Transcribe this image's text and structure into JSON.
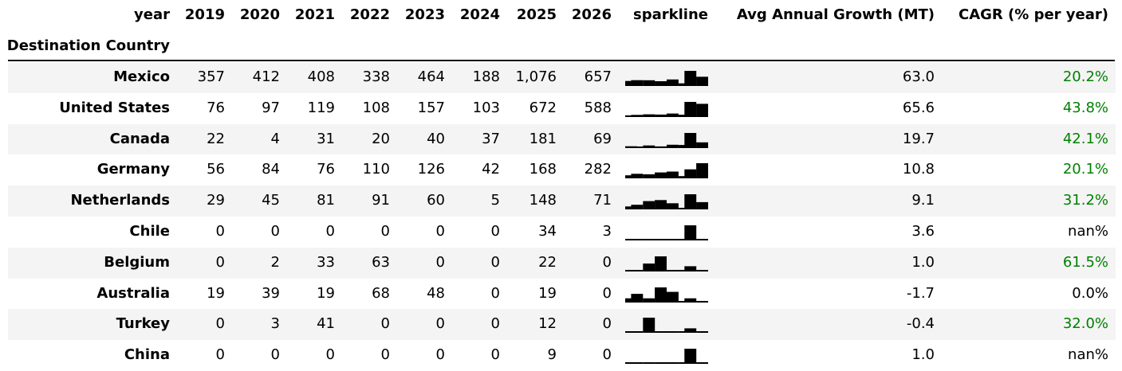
{
  "header": {
    "index_label": "year",
    "years": [
      "2019",
      "2020",
      "2021",
      "2022",
      "2023",
      "2024",
      "2025",
      "2026"
    ],
    "sparkline_label": "sparkline",
    "growth_label": "Avg Annual Growth (MT)",
    "cagr_label": "CAGR (% per year)",
    "row_index_label": "Destination Country"
  },
  "colors": {
    "positive_cagr": "#008000",
    "row_shade": "#f4f4f4",
    "spark": "#000000"
  },
  "chart_data": {
    "type": "table",
    "columns": [
      "2019",
      "2020",
      "2021",
      "2022",
      "2023",
      "2024",
      "2025",
      "2026",
      "sparkline",
      "Avg Annual Growth (MT)",
      "CAGR (% per year)"
    ],
    "rows": [
      {
        "country": "Mexico",
        "values": [
          357,
          412,
          408,
          338,
          464,
          188,
          1076,
          657
        ],
        "display": [
          "357",
          "412",
          "408",
          "338",
          "464",
          "188",
          "1,076",
          "657"
        ],
        "growth": "63.0",
        "cagr": "20.2%",
        "cagr_positive": true
      },
      {
        "country": "United States",
        "values": [
          76,
          97,
          119,
          108,
          157,
          103,
          672,
          588
        ],
        "display": [
          "76",
          "97",
          "119",
          "108",
          "157",
          "103",
          "672",
          "588"
        ],
        "growth": "65.6",
        "cagr": "43.8%",
        "cagr_positive": true
      },
      {
        "country": "Canada",
        "values": [
          22,
          4,
          31,
          20,
          40,
          37,
          181,
          69
        ],
        "display": [
          "22",
          "4",
          "31",
          "20",
          "40",
          "37",
          "181",
          "69"
        ],
        "growth": "19.7",
        "cagr": "42.1%",
        "cagr_positive": true
      },
      {
        "country": "Germany",
        "values": [
          56,
          84,
          76,
          110,
          126,
          42,
          168,
          282
        ],
        "display": [
          "56",
          "84",
          "76",
          "110",
          "126",
          "42",
          "168",
          "282"
        ],
        "growth": "10.8",
        "cagr": "20.1%",
        "cagr_positive": true
      },
      {
        "country": "Netherlands",
        "values": [
          29,
          45,
          81,
          91,
          60,
          5,
          148,
          71
        ],
        "display": [
          "29",
          "45",
          "81",
          "91",
          "60",
          "5",
          "148",
          "71"
        ],
        "growth": "9.1",
        "cagr": "31.2%",
        "cagr_positive": true
      },
      {
        "country": "Chile",
        "values": [
          0,
          0,
          0,
          0,
          0,
          0,
          34,
          3
        ],
        "display": [
          "0",
          "0",
          "0",
          "0",
          "0",
          "0",
          "34",
          "3"
        ],
        "growth": "3.6",
        "cagr": "nan%",
        "cagr_positive": false
      },
      {
        "country": "Belgium",
        "values": [
          0,
          2,
          33,
          63,
          0,
          0,
          22,
          0
        ],
        "display": [
          "0",
          "2",
          "33",
          "63",
          "0",
          "0",
          "22",
          "0"
        ],
        "growth": "1.0",
        "cagr": "61.5%",
        "cagr_positive": true
      },
      {
        "country": "Australia",
        "values": [
          19,
          39,
          19,
          68,
          48,
          0,
          19,
          0
        ],
        "display": [
          "19",
          "39",
          "19",
          "68",
          "48",
          "0",
          "19",
          "0"
        ],
        "growth": "-1.7",
        "cagr": "0.0%",
        "cagr_positive": false
      },
      {
        "country": "Turkey",
        "values": [
          0,
          3,
          41,
          0,
          0,
          0,
          12,
          0
        ],
        "display": [
          "0",
          "3",
          "41",
          "0",
          "0",
          "0",
          "12",
          "0"
        ],
        "growth": "-0.4",
        "cagr": "32.0%",
        "cagr_positive": true
      },
      {
        "country": "China",
        "values": [
          0,
          0,
          0,
          0,
          0,
          0,
          9,
          0
        ],
        "display": [
          "0",
          "0",
          "0",
          "0",
          "0",
          "0",
          "9",
          "0"
        ],
        "growth": "1.0",
        "cagr": "nan%",
        "cagr_positive": false
      }
    ]
  }
}
